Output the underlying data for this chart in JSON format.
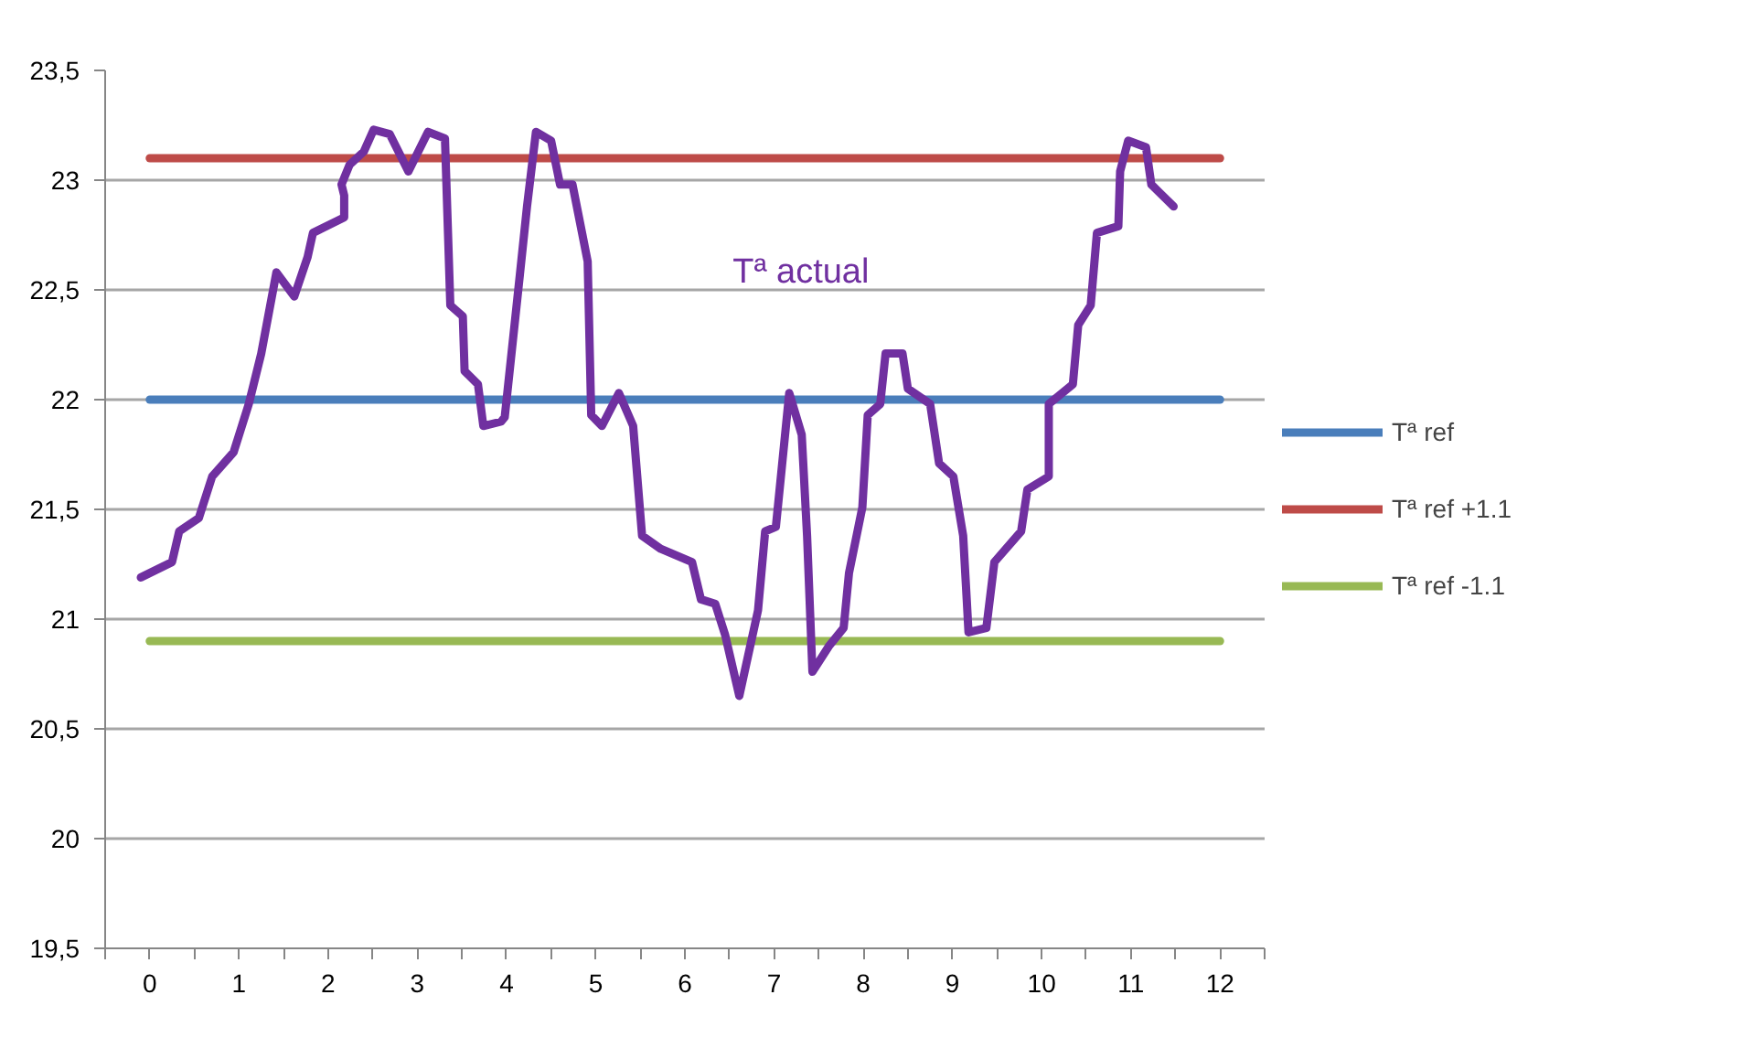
{
  "chart_data": {
    "type": "line",
    "xlim": [
      -0.5,
      12.5
    ],
    "ylim": [
      19.5,
      23.5
    ],
    "xticks": [
      {
        "value": -0.5,
        "label": null
      },
      0,
      {
        "value": 0.5,
        "label": null
      },
      1,
      {
        "value": 1.5,
        "label": null
      },
      2,
      {
        "value": 2.5,
        "label": null
      },
      3,
      {
        "value": 3.5,
        "label": null
      },
      4,
      {
        "value": 4.5,
        "label": null
      },
      5,
      {
        "value": 5.5,
        "label": null
      },
      6,
      {
        "value": 6.5,
        "label": null
      },
      7,
      {
        "value": 7.5,
        "label": null
      },
      8,
      {
        "value": 8.5,
        "label": null
      },
      9,
      {
        "value": 9.5,
        "label": null
      },
      10,
      {
        "value": 10.5,
        "label": null
      },
      11,
      {
        "value": 11.5,
        "label": null
      },
      12,
      {
        "value": 12.5,
        "label": null
      }
    ],
    "yticks": [
      {
        "value": 19.5,
        "label": "19,5"
      },
      20,
      {
        "value": 20.5,
        "label": "20,5"
      },
      21,
      {
        "value": 21.5,
        "label": "21,5"
      },
      22,
      {
        "value": 22.5,
        "label": "22,5"
      },
      23,
      {
        "value": 23.5,
        "label": "23,5"
      }
    ],
    "grid": "y",
    "legend": "right",
    "series": [
      {
        "name": "Tª ref",
        "color": "#4a7ebb",
        "x": [
          0,
          12
        ],
        "values": [
          22,
          22
        ]
      },
      {
        "name": "Tª ref +1.1",
        "color": "#be4b48",
        "x": [
          0,
          12
        ],
        "values": [
          23.1,
          23.1
        ]
      },
      {
        "name": "Tª ref -1.1",
        "color": "#98b954",
        "x": [
          0,
          12
        ],
        "values": [
          20.9,
          20.9
        ]
      },
      {
        "color": "#7030a0",
        "x": [
          -0.1,
          0.25,
          0.33,
          0.55,
          0.7,
          0.94,
          1.11,
          1.25,
          1.42,
          1.62,
          1.77,
          1.83,
          2.18,
          2.18,
          2.15,
          2.24,
          2.4,
          2.51,
          2.69,
          2.9,
          3.12,
          3.31,
          3.37,
          3.51,
          3.53,
          3.68,
          3.74,
          3.94,
          3.98,
          4.15,
          4.23,
          4.33,
          4.5,
          4.6,
          4.74,
          4.91,
          4.95,
          5.07,
          5.26,
          5.42,
          5.52,
          5.73,
          6.08,
          6.18,
          6.34,
          6.45,
          6.61,
          6.82,
          6.9,
          7.02,
          7.17,
          7.31,
          7.37,
          7.43,
          7.62,
          7.78,
          7.84,
          7.99,
          8.05,
          8.19,
          8.25,
          8.44,
          8.5,
          8.75,
          8.85,
          9.01,
          9.12,
          9.16,
          9.18,
          9.38,
          9.47,
          9.77,
          9.84,
          10.08,
          10.08,
          10.35,
          10.41,
          10.55,
          10.62,
          10.86,
          10.88,
          10.97,
          11.17,
          11.23,
          11.48
        ],
        "values": [
          21.19,
          21.26,
          21.4,
          21.46,
          21.65,
          21.76,
          21.98,
          22.21,
          22.58,
          22.47,
          22.65,
          22.76,
          22.83,
          22.93,
          22.98,
          23.07,
          23.13,
          23.23,
          23.21,
          23.04,
          23.22,
          23.19,
          22.43,
          22.38,
          22.13,
          22.07,
          21.88,
          21.9,
          21.92,
          22.57,
          22.88,
          23.22,
          23.18,
          22.98,
          22.98,
          22.63,
          21.93,
          21.88,
          22.03,
          21.88,
          21.38,
          21.32,
          21.26,
          21.09,
          21.07,
          20.93,
          20.65,
          21.04,
          21.4,
          21.42,
          22.03,
          21.84,
          21.38,
          20.76,
          20.88,
          20.96,
          21.21,
          21.51,
          21.93,
          21.98,
          22.21,
          22.21,
          22.05,
          21.98,
          21.71,
          21.65,
          21.38,
          21.09,
          20.94,
          20.96,
          21.26,
          21.4,
          21.59,
          21.65,
          21.98,
          22.07,
          22.34,
          22.43,
          22.76,
          22.79,
          23.04,
          23.18,
          23.15,
          22.98,
          22.88
        ]
      }
    ],
    "annotations": [
      "Tª actual"
    ]
  }
}
